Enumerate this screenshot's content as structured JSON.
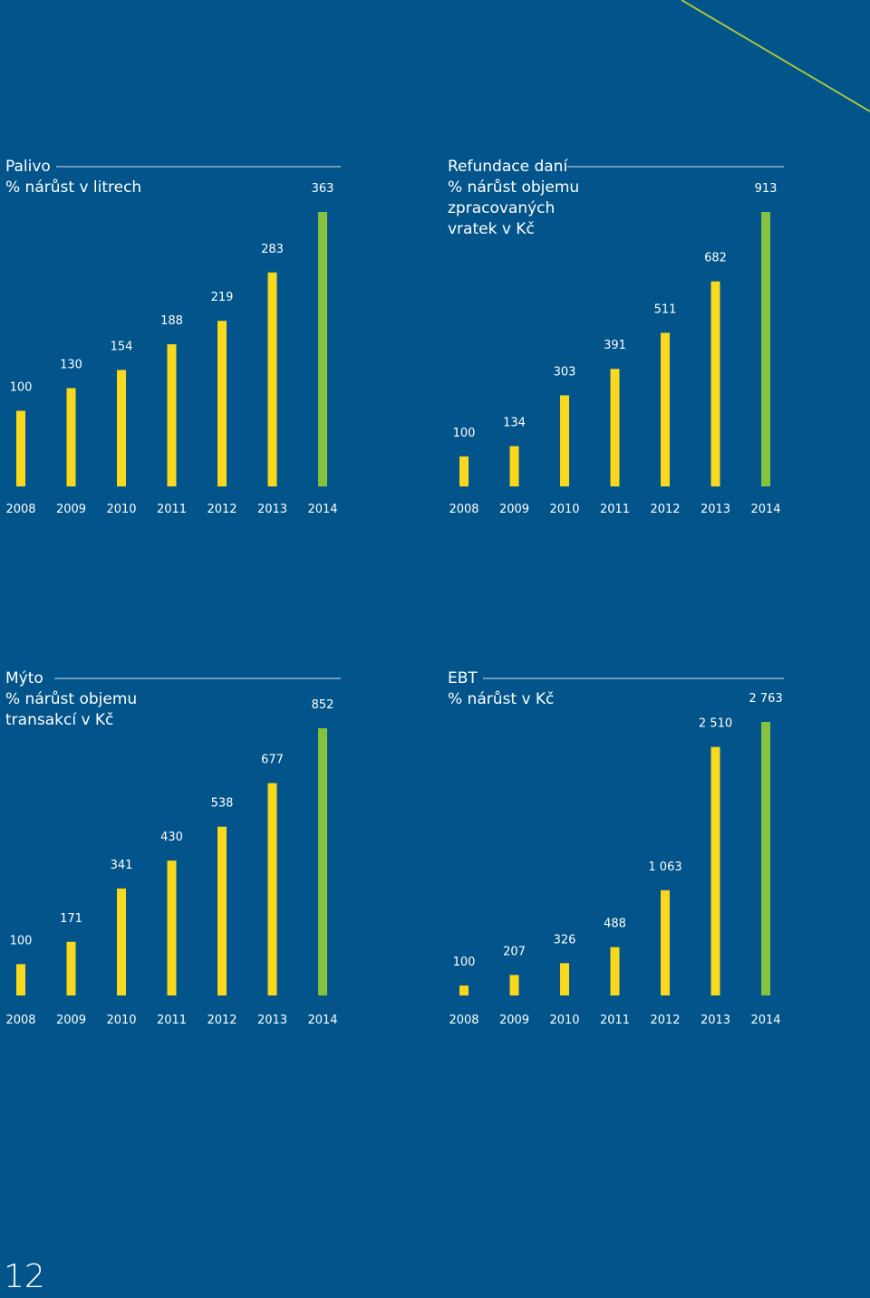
{
  "page_number": "12",
  "colors": {
    "background": "#02548a",
    "bar_regular": "#f9d81d",
    "bar_highlight": "#86c13f",
    "accent_line": "#a6c83a",
    "rule": "#d6e2ec"
  },
  "chart_data": [
    {
      "type": "bar",
      "title": "Palivo",
      "subtitle_lines": [
        "% nárůst v litrech"
      ],
      "categories": [
        "2008",
        "2009",
        "2010",
        "2011",
        "2012",
        "2013",
        "2014"
      ],
      "values": [
        100,
        130,
        154,
        188,
        219,
        283,
        363
      ],
      "value_labels": [
        "100",
        "130",
        "154",
        "188",
        "219",
        "283",
        "363"
      ],
      "highlight_category": "2014",
      "ylim": [
        0,
        363
      ]
    },
    {
      "type": "bar",
      "title": "Refundace daní",
      "subtitle_lines": [
        "% nárůst objemu",
        "zpracovaných",
        "vratek v Kč"
      ],
      "categories": [
        "2008",
        "2009",
        "2010",
        "2011",
        "2012",
        "2013",
        "2014"
      ],
      "values": [
        100,
        134,
        303,
        391,
        511,
        682,
        913
      ],
      "value_labels": [
        "100",
        "134",
        "303",
        "391",
        "511",
        "682",
        "913"
      ],
      "highlight_category": "2014",
      "ylim": [
        0,
        913
      ]
    },
    {
      "type": "bar",
      "title": "Mýto",
      "subtitle_lines": [
        "% nárůst objemu",
        "transakcí v Kč"
      ],
      "categories": [
        "2008",
        "2009",
        "2010",
        "2011",
        "2012",
        "2013",
        "2014"
      ],
      "values": [
        100,
        171,
        341,
        430,
        538,
        677,
        852
      ],
      "value_labels": [
        "100",
        "171",
        "341",
        "430",
        "538",
        "677",
        "852"
      ],
      "highlight_category": "2014",
      "ylim": [
        0,
        852
      ]
    },
    {
      "type": "bar",
      "title": "EBT",
      "subtitle_lines": [
        "% nárůst v Kč"
      ],
      "categories": [
        "2008",
        "2009",
        "2010",
        "2011",
        "2012",
        "2013",
        "2014"
      ],
      "values": [
        100,
        207,
        326,
        488,
        1063,
        2510,
        2763
      ],
      "value_labels": [
        "100",
        "207",
        "326",
        "488",
        "1 063",
        "2 510",
        "2 763"
      ],
      "highlight_category": "2014",
      "ylim": [
        0,
        2763
      ]
    }
  ]
}
